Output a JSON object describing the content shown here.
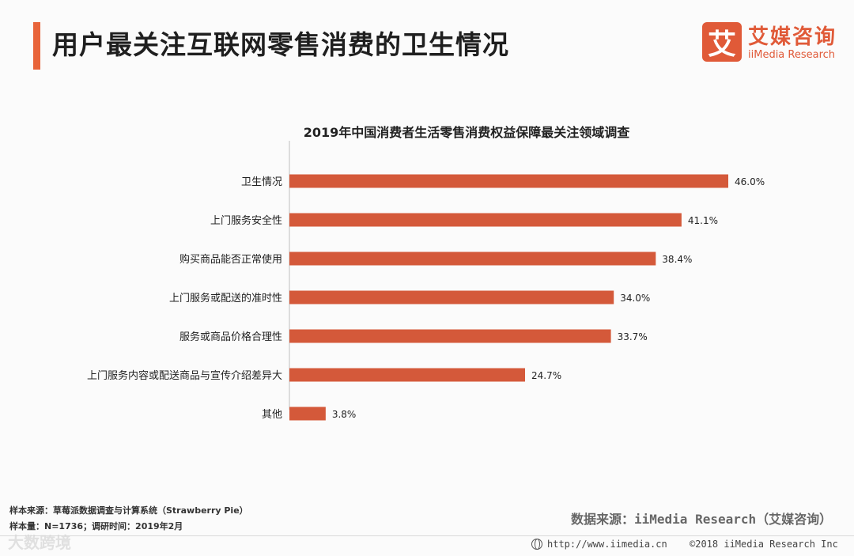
{
  "header": {
    "title": "用户最关注互联网零售消费的卫生情况",
    "accent_color": "#e8643a"
  },
  "logo": {
    "mark": "艾",
    "name_cn": "艾媒咨询",
    "name_en": "iiMedia Research",
    "color": "#e05a38"
  },
  "chart_data": {
    "type": "bar",
    "orientation": "horizontal",
    "title": "2019年中国消费者生活零售消费权益保障最关注领域调查",
    "categories": [
      "卫生情况",
      "上门服务安全性",
      "购买商品能否正常使用",
      "上门服务或配送的准时性",
      "服务或商品价格合理性",
      "上门服务内容或配送商品与宣传介绍差异大",
      "其他"
    ],
    "values": [
      46.0,
      41.1,
      38.4,
      34.0,
      33.7,
      24.7,
      3.8
    ],
    "value_labels": [
      "46.0%",
      "41.1%",
      "38.4%",
      "34.0%",
      "33.7%",
      "24.7%",
      "3.8%"
    ],
    "unit": "%",
    "xlim": [
      0,
      50
    ],
    "bar_color": "#d4593a",
    "grid": false,
    "legend": false
  },
  "footer": {
    "sample_source": "样本来源：草莓派数据调查与计算系统（Strawberry  Pie）",
    "sample_size": "样本量：N=1736；调研时间：2019年2月",
    "data_source": "数据来源：iiMedia Research（艾媒咨询）",
    "url": "http://www.iimedia.cn",
    "copyright": "©2018  iiMedia Research  Inc"
  },
  "watermark": {
    "text": "大数跨境"
  }
}
